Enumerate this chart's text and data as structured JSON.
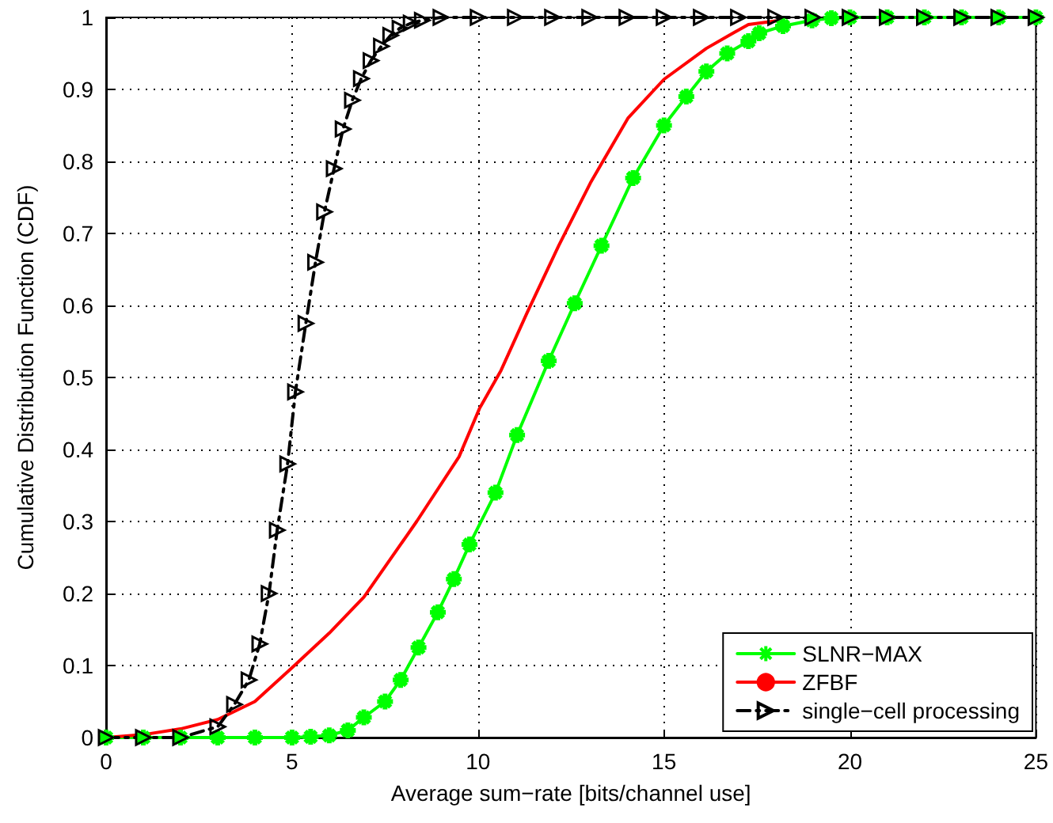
{
  "chart_data": {
    "type": "line",
    "xlabel": "Average sum−rate [bits/channel use]",
    "ylabel": "Cumulative Distribution Function (CDF)",
    "xlim": [
      0,
      25
    ],
    "xticks": [
      0,
      5,
      10,
      15,
      20,
      25
    ],
    "ylim": [
      0,
      1
    ],
    "yticks": [
      0,
      0.1,
      0.2,
      0.3,
      0.4,
      0.5,
      0.6,
      0.7,
      0.8,
      0.9,
      1
    ],
    "grid": true,
    "legend": "bottom right",
    "series": [
      {
        "name": "SLNR−MAX",
        "color": "#00ff00",
        "marker": "cross",
        "line_style": "solid",
        "x": [
          0,
          1,
          2,
          3,
          4,
          5,
          5.5,
          6,
          6.5,
          6.93,
          7.5,
          7.92,
          8.4,
          8.92,
          9.35,
          9.77,
          10.47,
          11.05,
          11.9,
          12.6,
          13.32,
          14.17,
          15.0,
          15.6,
          16.14,
          16.7,
          17.27,
          17.56,
          18.2,
          18.98,
          19.5,
          20,
          21,
          22,
          23,
          24,
          25
        ],
        "values": [
          0,
          0,
          0,
          0,
          0,
          0,
          0.001,
          0.003,
          0.01,
          0.028,
          0.05,
          0.08,
          0.125,
          0.174,
          0.22,
          0.268,
          0.34,
          0.42,
          0.523,
          0.603,
          0.683,
          0.777,
          0.85,
          0.89,
          0.925,
          0.95,
          0.967,
          0.978,
          0.988,
          0.996,
          0.999,
          1,
          1,
          1,
          1,
          1,
          1
        ]
      },
      {
        "name": "ZFBF",
        "color": "#ff0000",
        "marker": "none",
        "line_style": "solid",
        "x": [
          0,
          1,
          2,
          3,
          4,
          5,
          6,
          6.93,
          8.35,
          9.49,
          10.04,
          10.62,
          11.32,
          12.17,
          13.02,
          14.03,
          15.0,
          16.14,
          16.85,
          17.27,
          18
        ],
        "values": [
          0,
          0.004,
          0.012,
          0.025,
          0.05,
          0.097,
          0.145,
          0.195,
          0.3,
          0.39,
          0.457,
          0.51,
          0.59,
          0.683,
          0.77,
          0.86,
          0.914,
          0.957,
          0.978,
          0.99,
          0.995
        ]
      },
      {
        "name": "single−cell processing",
        "color": "#000000",
        "marker": "triangle",
        "line_style": "dashed",
        "x": [
          0,
          1,
          2,
          3,
          3.45,
          3.84,
          4.13,
          4.38,
          4.6,
          4.88,
          5.09,
          5.37,
          5.63,
          5.87,
          6.13,
          6.37,
          6.62,
          6.86,
          7.12,
          7.4,
          7.65,
          7.9,
          8.2,
          8.5,
          9,
          10,
          11,
          12,
          13,
          14,
          15,
          16,
          17,
          18,
          19,
          20,
          21,
          22,
          23,
          24,
          25
        ],
        "values": [
          0,
          0,
          0,
          0.015,
          0.046,
          0.08,
          0.13,
          0.2,
          0.288,
          0.38,
          0.48,
          0.575,
          0.66,
          0.73,
          0.79,
          0.845,
          0.885,
          0.915,
          0.94,
          0.96,
          0.975,
          0.985,
          0.992,
          0.996,
          1,
          1,
          1,
          1,
          1,
          1,
          1,
          1,
          1,
          1,
          1,
          1,
          1,
          1,
          1,
          1,
          1
        ]
      }
    ]
  }
}
